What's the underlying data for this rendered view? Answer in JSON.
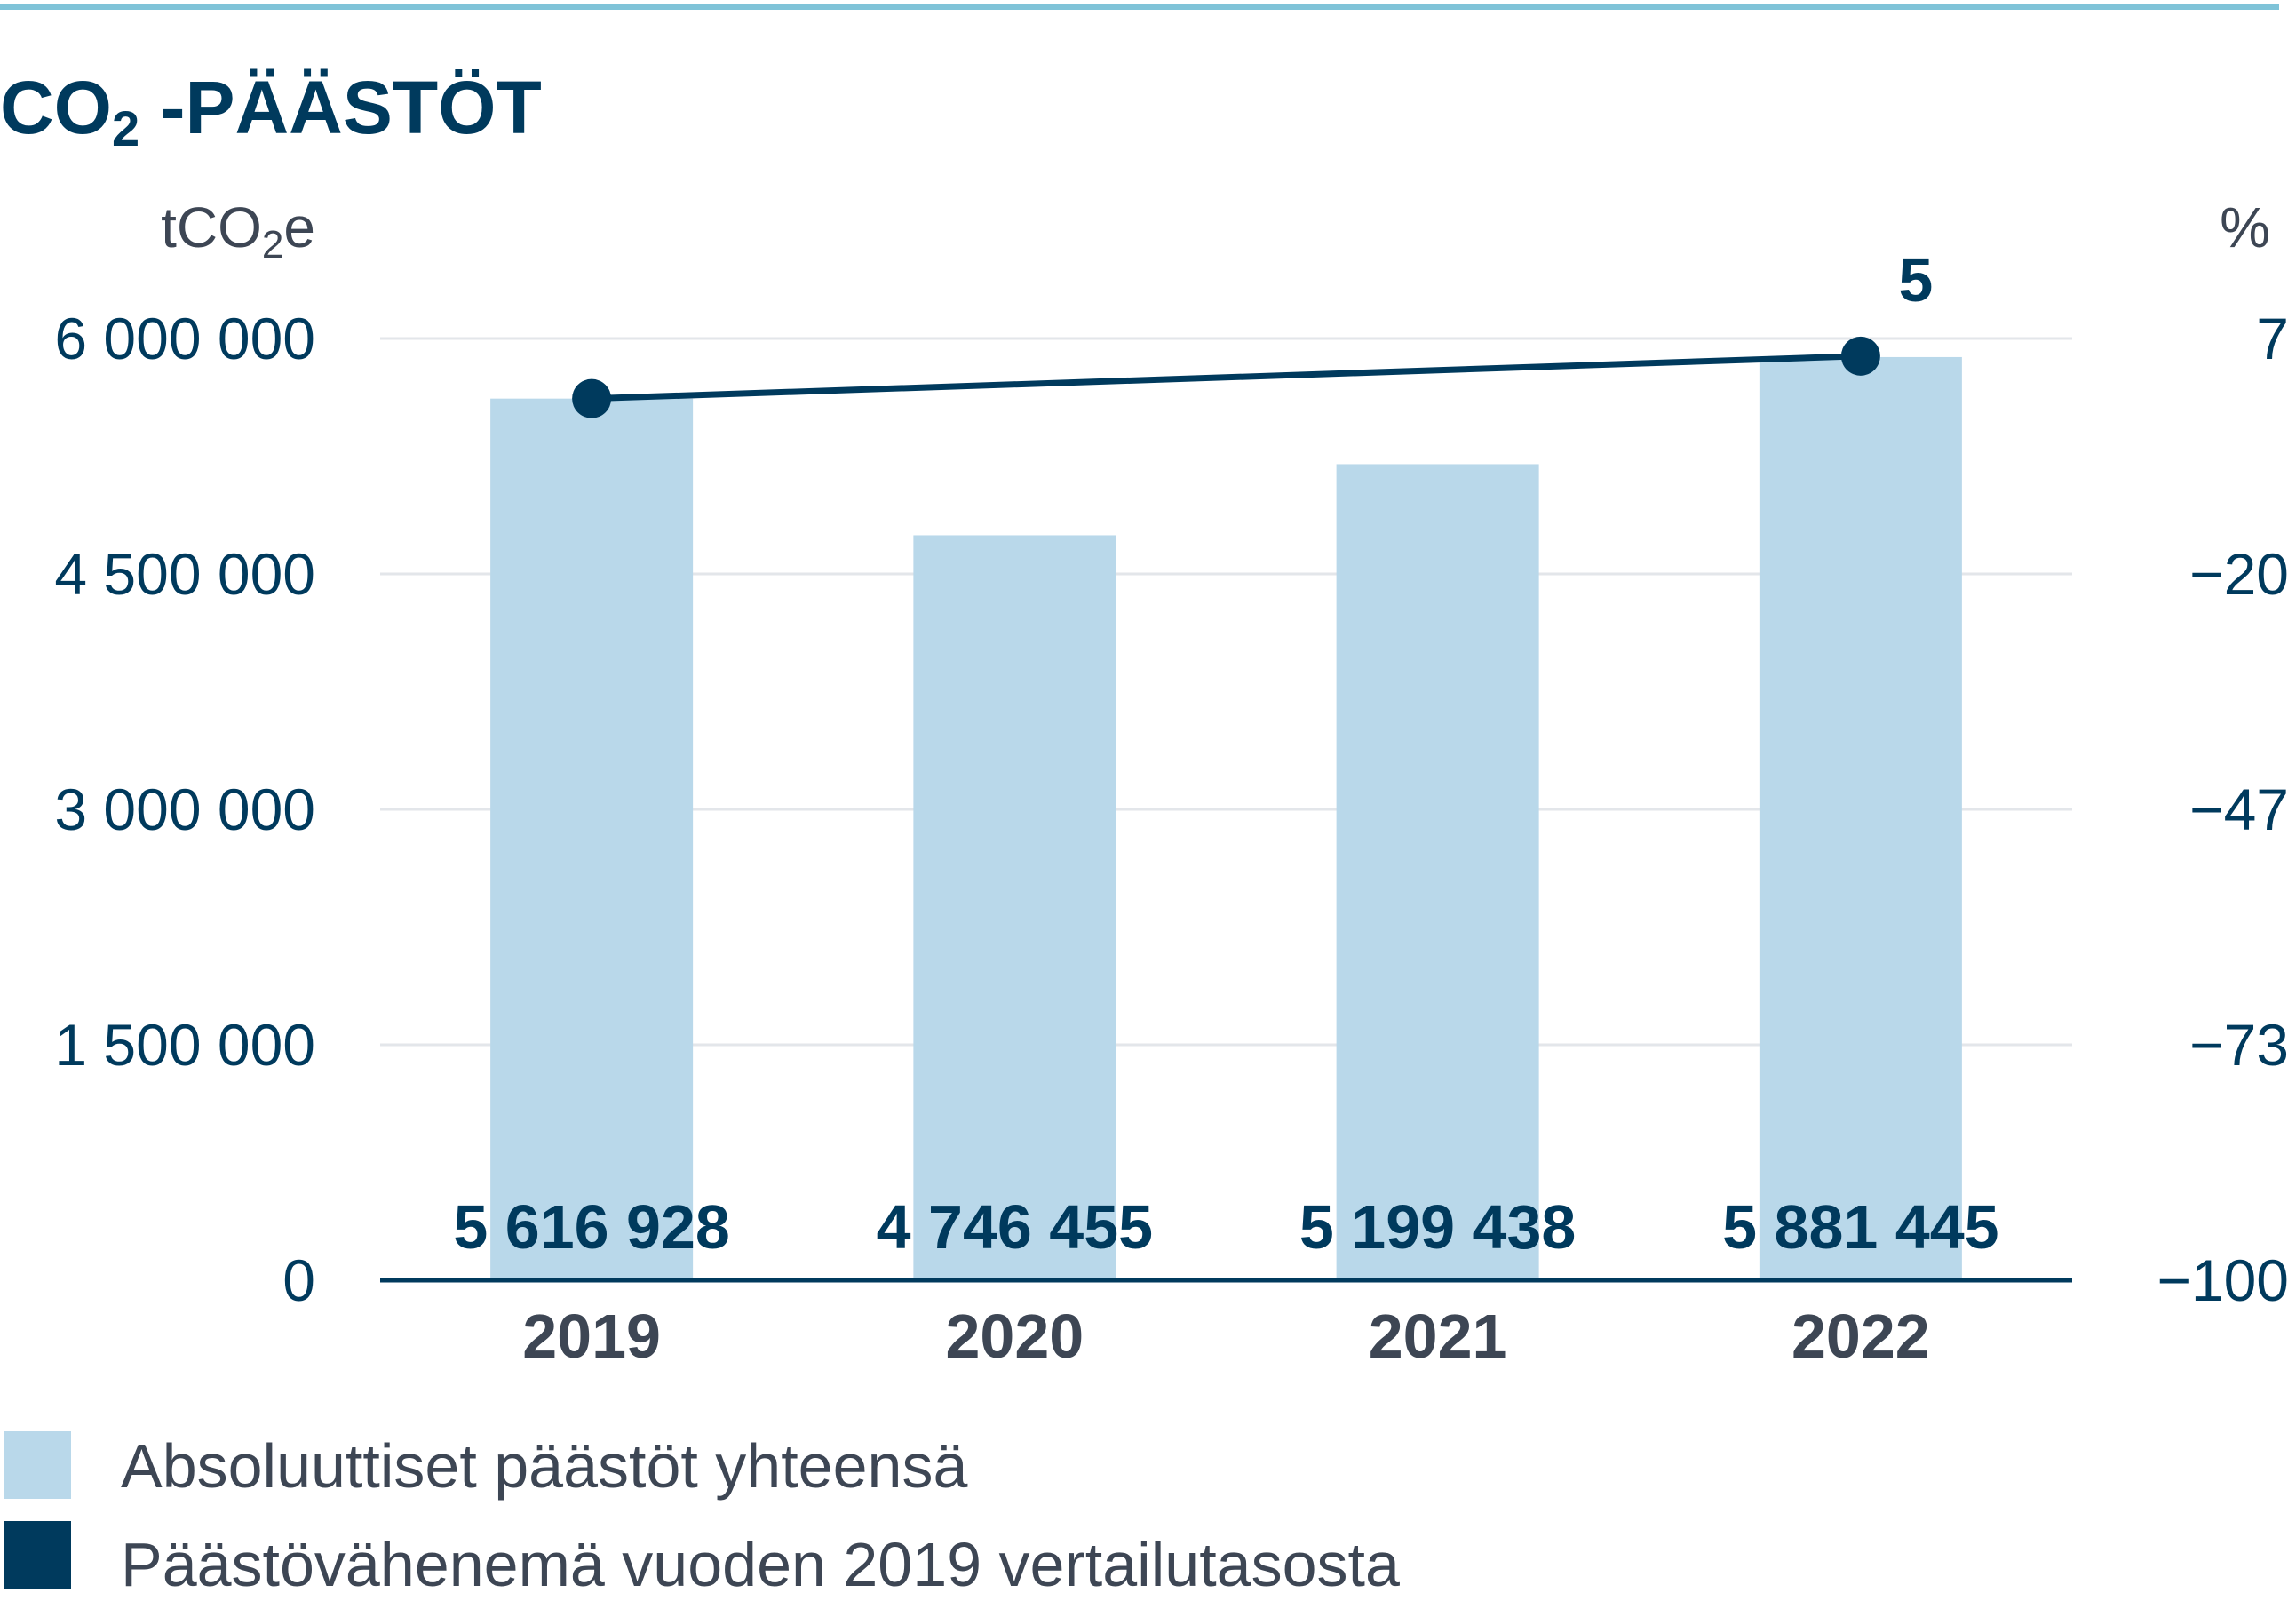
{
  "title": {
    "main": "CO",
    "subscript": "2",
    "rest": " -PÄÄSTÖT"
  },
  "colors": {
    "bar": "#b9d8ea",
    "line": "#003a5d",
    "title": "#003a5d",
    "axis_text": "#003a5d",
    "category_text": "#3d4654",
    "grid": "#e3e6ea",
    "top_rule": "#7fc3d8"
  },
  "chart_data": {
    "type": "bar",
    "categories": [
      "2019",
      "2020",
      "2021",
      "2022"
    ],
    "left_axis": {
      "unit_main": "tCO",
      "unit_sub": "2",
      "unit_end": "e",
      "ylim": [
        0,
        6000000
      ],
      "ticks": [
        0,
        1500000,
        3000000,
        4500000,
        6000000
      ],
      "tick_labels": [
        "0",
        "1 500 000",
        "3 000 000",
        "4 500 000",
        "6 000 000"
      ]
    },
    "right_axis": {
      "unit": "%",
      "ylim": [
        -100,
        7
      ],
      "tick_labels": [
        "−100",
        "−73",
        "−47",
        "−20",
        "7"
      ]
    },
    "series": [
      {
        "name": "Absoluuttiset päästöt yhteensä",
        "kind": "bar",
        "axis": "left",
        "values": [
          5616928,
          4746455,
          5199438,
          5881445
        ],
        "labels": [
          "5 616 928",
          "4 746 455",
          "5 199 438",
          "5 881 445"
        ]
      },
      {
        "name": "Päästövähenemä vuoden 2019 vertailutasosta",
        "kind": "line",
        "axis": "right",
        "points": [
          {
            "category": "2019",
            "value": 0
          },
          {
            "category": "2022",
            "value": 5,
            "label": "5"
          }
        ]
      }
    ],
    "grid": true,
    "legend_position": "bottom-left"
  }
}
